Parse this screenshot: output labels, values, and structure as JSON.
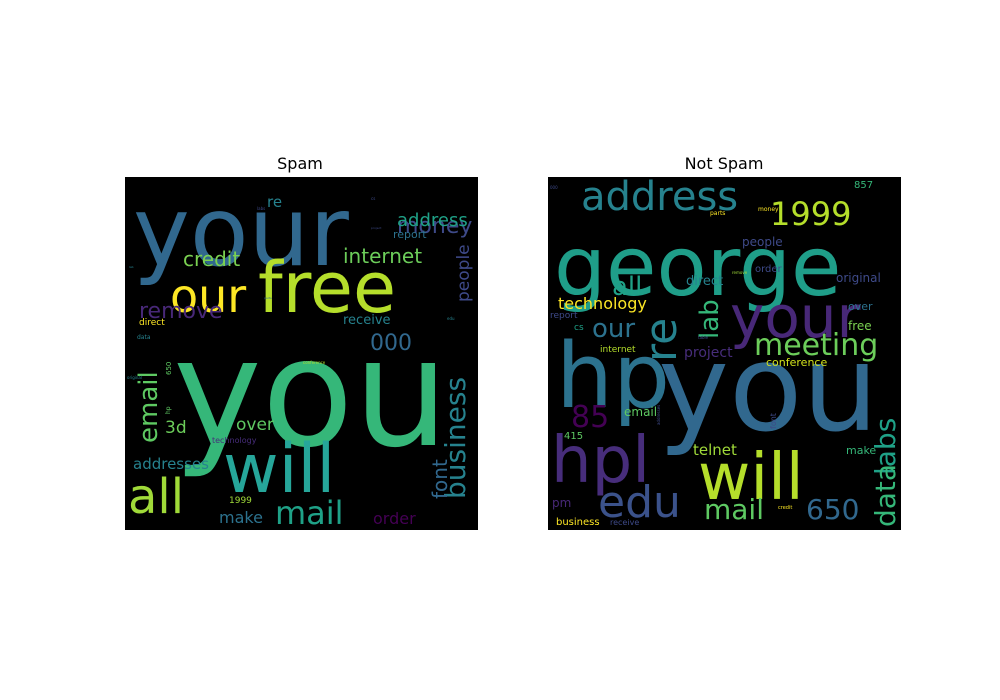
{
  "chart_data": [
    {
      "type": "wordcloud",
      "title": "Spam",
      "background": "#000000",
      "words": [
        {
          "text": "your",
          "size": 96,
          "color": "#31688e"
        },
        {
          "text": "you",
          "size": 150,
          "color": "#35b779"
        },
        {
          "text": "free",
          "size": 70,
          "color": "#b5de2b"
        },
        {
          "text": "our",
          "size": 46,
          "color": "#fde725"
        },
        {
          "text": "will",
          "size": 68,
          "color": "#26a69a"
        },
        {
          "text": "all",
          "size": 48,
          "color": "#a0da39"
        },
        {
          "text": "mail",
          "size": 32,
          "color": "#1fa187"
        },
        {
          "text": "business",
          "size": 28,
          "color": "#26828e"
        },
        {
          "text": "email",
          "size": 26,
          "color": "#5ec962"
        },
        {
          "text": "money",
          "size": 22,
          "color": "#3e4a89"
        },
        {
          "text": "address",
          "size": 18,
          "color": "#1fa187"
        },
        {
          "text": "internet",
          "size": 20,
          "color": "#6ccd5a"
        },
        {
          "text": "credit",
          "size": 20,
          "color": "#7ad151"
        },
        {
          "text": "remove",
          "size": 22,
          "color": "#482878"
        },
        {
          "text": "people",
          "size": 17,
          "color": "#3e4a89"
        },
        {
          "text": "font",
          "size": 20,
          "color": "#31688e"
        },
        {
          "text": "000",
          "size": 22,
          "color": "#31688e"
        },
        {
          "text": "over",
          "size": 17,
          "color": "#5ec962"
        },
        {
          "text": "3d",
          "size": 17,
          "color": "#6ccd5a"
        },
        {
          "text": "addresses",
          "size": 15,
          "color": "#26828e"
        },
        {
          "text": "make",
          "size": 16,
          "color": "#2c728e"
        },
        {
          "text": "order",
          "size": 16,
          "color": "#440154"
        },
        {
          "text": "receive",
          "size": 13,
          "color": "#26828e"
        },
        {
          "text": "report",
          "size": 11,
          "color": "#2c728e"
        },
        {
          "text": "re",
          "size": 15,
          "color": "#26828e"
        },
        {
          "text": "1999",
          "size": 9,
          "color": "#a0da39"
        },
        {
          "text": "direct",
          "size": 9,
          "color": "#fde725"
        },
        {
          "text": "technology",
          "size": 8,
          "color": "#472d7b"
        },
        {
          "text": "650",
          "size": 7,
          "color": "#5ec962"
        },
        {
          "text": "hp",
          "size": 6,
          "color": "#5ec962"
        },
        {
          "text": "data",
          "size": 6,
          "color": "#26828e"
        },
        {
          "text": "original",
          "size": 4,
          "color": "#26828e"
        },
        {
          "text": "edu",
          "size": 4,
          "color": "#26828e"
        },
        {
          "text": "conference",
          "size": 4,
          "color": "#b5de2b"
        },
        {
          "text": "cs",
          "size": 4,
          "color": "#3e4a89"
        },
        {
          "text": "labs",
          "size": 4,
          "color": "#3e4a89"
        },
        {
          "text": "parts",
          "size": 3,
          "color": "#31688e"
        },
        {
          "text": "lab",
          "size": 3,
          "color": "#26828e"
        },
        {
          "text": "pm",
          "size": 3,
          "color": "#1fa187"
        },
        {
          "text": "project",
          "size": 3,
          "color": "#3e4a89"
        }
      ]
    },
    {
      "type": "wordcloud",
      "title": "Not Spam",
      "background": "#000000",
      "words": [
        {
          "text": "george",
          "size": 82,
          "color": "#1f9e89"
        },
        {
          "text": "you",
          "size": 120,
          "color": "#31688e"
        },
        {
          "text": "hp",
          "size": 90,
          "color": "#2c728e"
        },
        {
          "text": "hpl",
          "size": 64,
          "color": "#472d7b"
        },
        {
          "text": "your",
          "size": 58,
          "color": "#482878"
        },
        {
          "text": "will",
          "size": 64,
          "color": "#b5de2b"
        },
        {
          "text": "edu",
          "size": 44,
          "color": "#3b528b"
        },
        {
          "text": "address",
          "size": 40,
          "color": "#26828e"
        },
        {
          "text": "1999",
          "size": 32,
          "color": "#b5de2b"
        },
        {
          "text": "re",
          "size": 44,
          "color": "#26828e"
        },
        {
          "text": "meeting",
          "size": 30,
          "color": "#6ccd5a"
        },
        {
          "text": "labs",
          "size": 28,
          "color": "#1fa187"
        },
        {
          "text": "data",
          "size": 28,
          "color": "#35b779"
        },
        {
          "text": "lab",
          "size": 26,
          "color": "#35b779"
        },
        {
          "text": "our",
          "size": 26,
          "color": "#2c728e"
        },
        {
          "text": "all",
          "size": 26,
          "color": "#1fa187"
        },
        {
          "text": "mail",
          "size": 28,
          "color": "#5ec962"
        },
        {
          "text": "650",
          "size": 28,
          "color": "#31688e"
        },
        {
          "text": "85",
          "size": 30,
          "color": "#440154"
        },
        {
          "text": "technology",
          "size": 16,
          "color": "#fde725"
        },
        {
          "text": "project",
          "size": 14,
          "color": "#472d7b"
        },
        {
          "text": "telnet",
          "size": 15,
          "color": "#a0da39"
        },
        {
          "text": "email",
          "size": 12,
          "color": "#5ec962"
        },
        {
          "text": "direct",
          "size": 13,
          "color": "#26828e"
        },
        {
          "text": "people",
          "size": 12,
          "color": "#3e4a89"
        },
        {
          "text": "original",
          "size": 12,
          "color": "#3e4a89"
        },
        {
          "text": "conference",
          "size": 11,
          "color": "#d2e21b"
        },
        {
          "text": "free",
          "size": 12,
          "color": "#7ad151"
        },
        {
          "text": "over",
          "size": 11,
          "color": "#2c728e"
        },
        {
          "text": "order",
          "size": 10,
          "color": "#3e4a89"
        },
        {
          "text": "make",
          "size": 11,
          "color": "#35b779"
        },
        {
          "text": "pm",
          "size": 12,
          "color": "#482878"
        },
        {
          "text": "business",
          "size": 10,
          "color": "#fde725"
        },
        {
          "text": "receive",
          "size": 8,
          "color": "#3e4a89"
        },
        {
          "text": "internet",
          "size": 9,
          "color": "#b5de2b"
        },
        {
          "text": "report",
          "size": 9,
          "color": "#3e4a89"
        },
        {
          "text": "cs",
          "size": 9,
          "color": "#1fa187"
        },
        {
          "text": "857",
          "size": 10,
          "color": "#35b779"
        },
        {
          "text": "415",
          "size": 10,
          "color": "#5ec962"
        },
        {
          "text": "font",
          "size": 8,
          "color": "#3e4a89"
        },
        {
          "text": "parts",
          "size": 6,
          "color": "#fde725"
        },
        {
          "text": "money",
          "size": 6,
          "color": "#fde725"
        },
        {
          "text": "credit",
          "size": 5,
          "color": "#fde725"
        },
        {
          "text": "remove",
          "size": 4,
          "color": "#a0da39"
        },
        {
          "text": "table",
          "size": 4,
          "color": "#3e4a89"
        },
        {
          "text": "addresses",
          "size": 4,
          "color": "#3e4a89"
        },
        {
          "text": "000",
          "size": 4,
          "color": "#3e4a89"
        }
      ]
    }
  ]
}
